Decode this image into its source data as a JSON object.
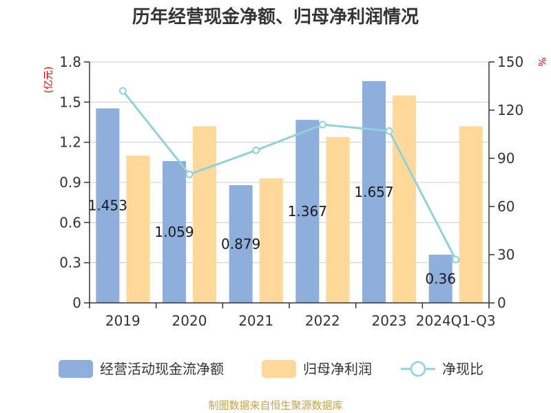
{
  "title": "历年经营现金净额、归母净利润情况",
  "source": "制图数据来自恒生聚源数据库",
  "chart_data": {
    "type": "bar",
    "title": "历年经营现金净额、归母净利润情况",
    "categories": [
      "2019",
      "2020",
      "2021",
      "2022",
      "2023",
      "2024Q1-Q3"
    ],
    "y_left": {
      "unit": "(亿元)",
      "ylim": [
        0,
        1.8
      ],
      "ticks": [
        "0",
        "0.3",
        "0.6",
        "0.9",
        "1.2",
        "1.5",
        "1.8"
      ]
    },
    "y_right": {
      "unit": "%",
      "ylim": [
        0,
        150
      ],
      "ticks": [
        "0",
        "30",
        "60",
        "90",
        "120",
        "150"
      ]
    },
    "grid": true,
    "legend_position": "bottom",
    "series": [
      {
        "name": "经营活动现金流净额",
        "type": "bar",
        "axis": "left",
        "color": "#8eaedc",
        "values": [
          1.453,
          1.059,
          0.879,
          1.367,
          1.657,
          0.36
        ],
        "labels": [
          "1.453",
          "1.059",
          "0.879",
          "1.367",
          "1.657",
          "0.36"
        ]
      },
      {
        "name": "归母净利润",
        "type": "bar",
        "axis": "left",
        "color": "#ffd89a",
        "values": [
          1.1,
          1.32,
          0.93,
          1.24,
          1.55,
          1.32
        ]
      },
      {
        "name": "净现比",
        "type": "line",
        "axis": "right",
        "color": "#8dd3d9",
        "values": [
          132,
          80,
          95,
          111,
          107,
          27
        ]
      }
    ]
  }
}
